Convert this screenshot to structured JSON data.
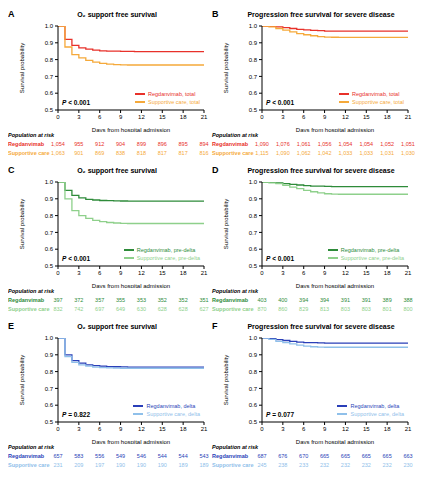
{
  "chart_data": [
    {
      "type": "line",
      "label": "A",
      "title": "O₂ support free survival",
      "x_label": "Days from hospital admission",
      "y_label": "Survival probability",
      "annotation": "P < 0.001",
      "line_style": "step",
      "legend": "lower right",
      "xlim": [
        0,
        21
      ],
      "xticks": [
        0,
        3,
        6,
        9,
        12,
        15,
        18,
        21
      ],
      "ylim": [
        0.5,
        1
      ],
      "yticks": [
        0.5,
        0.6,
        0.7,
        0.8,
        0.9,
        {
          "value": 1,
          "label": "1.0"
        }
      ],
      "x": [
        0,
        1,
        2,
        3,
        4,
        5,
        6,
        7,
        8,
        9,
        10,
        11,
        12,
        13,
        14,
        15,
        16,
        17,
        18,
        19,
        20,
        21
      ],
      "series": [
        {
          "name": "Regdanvimab, total",
          "color": "#e8312a",
          "values": [
            1,
            0.92,
            0.885,
            0.87,
            0.862,
            0.856,
            0.852,
            0.851,
            0.85,
            0.849,
            0.849,
            0.848,
            0.848,
            0.848,
            0.848,
            0.848,
            0.848,
            0.848,
            0.848,
            0.848,
            0.848,
            0.848
          ]
        },
        {
          "name": "Supportive care, total",
          "color": "#f5a93a",
          "values": [
            1,
            0.875,
            0.83,
            0.81,
            0.795,
            0.785,
            0.778,
            0.773,
            0.77,
            0.769,
            0.768,
            0.768,
            0.768,
            0.768,
            0.768,
            0.768,
            0.768,
            0.768,
            0.768,
            0.768,
            0.768,
            0.768
          ]
        }
      ],
      "at_risk": {
        "title": "Population at risk",
        "x": [
          0,
          3,
          6,
          9,
          12,
          15,
          18,
          21
        ],
        "rows": [
          {
            "name": "Regdanvimab",
            "color": "#e8312a",
            "values": [
              1054,
              955,
              912,
              904,
              899,
              896,
              895,
              894
            ]
          },
          {
            "name": "Supportive care",
            "color": "#f5a93a",
            "values": [
              1063,
              901,
              869,
              838,
              818,
              817,
              817,
              816
            ]
          }
        ]
      }
    },
    {
      "type": "line",
      "label": "B",
      "title": "Progression free survival for severe disease",
      "x_label": "Days from hospital admission",
      "y_label": "Survival probability",
      "annotation": "P < 0.001",
      "line_style": "step",
      "legend": "lower right",
      "xlim": [
        0,
        21
      ],
      "xticks": [
        0,
        3,
        6,
        9,
        12,
        15,
        18,
        21
      ],
      "ylim": [
        0.5,
        1
      ],
      "yticks": [
        0.5,
        0.6,
        0.7,
        0.8,
        0.9,
        {
          "value": 1,
          "label": "1.0"
        }
      ],
      "x": [
        0,
        1,
        2,
        3,
        4,
        5,
        6,
        7,
        8,
        9,
        10,
        11,
        12,
        13,
        14,
        15,
        16,
        17,
        18,
        19,
        20,
        21
      ],
      "series": [
        {
          "name": "Regdanvimab, total",
          "color": "#e8312a",
          "values": [
            1,
            0.998,
            0.995,
            0.99,
            0.985,
            0.98,
            0.977,
            0.974,
            0.972,
            0.97,
            0.969,
            0.969,
            0.969,
            0.969,
            0.969,
            0.969,
            0.969,
            0.969,
            0.969,
            0.969,
            0.969,
            0.969
          ]
        },
        {
          "name": "Supportive care, total",
          "color": "#f5a93a",
          "values": [
            1,
            0.995,
            0.985,
            0.975,
            0.965,
            0.955,
            0.948,
            0.942,
            0.937,
            0.934,
            0.933,
            0.932,
            0.932,
            0.932,
            0.932,
            0.932,
            0.932,
            0.932,
            0.932,
            0.932,
            0.932,
            0.932
          ]
        }
      ],
      "at_risk": {
        "title": "Population at risk",
        "x": [
          0,
          3,
          6,
          9,
          12,
          15,
          18,
          21
        ],
        "rows": [
          {
            "name": "Regdanvimab",
            "color": "#e8312a",
            "values": [
              1090,
              1076,
              1061,
              1056,
              1054,
              1054,
              1052,
              1051
            ]
          },
          {
            "name": "Supportive care",
            "color": "#f5a93a",
            "values": [
              1115,
              1090,
              1062,
              1042,
              1033,
              1033,
              1031,
              1030
            ]
          }
        ]
      }
    },
    {
      "type": "line",
      "label": "C",
      "title": "O₂ support free survival",
      "x_label": "Days from hospital admission",
      "y_label": "Survival probability",
      "annotation": "P < 0.001",
      "line_style": "step",
      "legend": "lower right",
      "xlim": [
        0,
        21
      ],
      "xticks": [
        0,
        3,
        6,
        9,
        12,
        15,
        18,
        21
      ],
      "ylim": [
        0.5,
        1
      ],
      "yticks": [
        0.5,
        0.6,
        0.7,
        0.8,
        0.9,
        {
          "value": 1,
          "label": "1.0"
        }
      ],
      "x": [
        0,
        1,
        2,
        3,
        4,
        5,
        6,
        7,
        8,
        9,
        10,
        11,
        12,
        13,
        14,
        15,
        16,
        17,
        18,
        19,
        20,
        21
      ],
      "series": [
        {
          "name": "Regdanvimab, pre-delta",
          "color": "#2e8b3a",
          "values": [
            1,
            0.95,
            0.92,
            0.905,
            0.897,
            0.893,
            0.89,
            0.889,
            0.888,
            0.887,
            0.886,
            0.886,
            0.886,
            0.886,
            0.886,
            0.886,
            0.886,
            0.886,
            0.886,
            0.886,
            0.886,
            0.886
          ]
        },
        {
          "name": "Supportive care, pre-delta",
          "color": "#8ed08b",
          "values": [
            1,
            0.9,
            0.83,
            0.8,
            0.783,
            0.772,
            0.764,
            0.759,
            0.756,
            0.754,
            0.753,
            0.753,
            0.753,
            0.753,
            0.753,
            0.753,
            0.753,
            0.753,
            0.753,
            0.753,
            0.753,
            0.753
          ]
        }
      ],
      "at_risk": {
        "title": "Population at risk",
        "x": [
          0,
          3,
          6,
          9,
          12,
          15,
          18,
          21
        ],
        "rows": [
          {
            "name": "Regdanvimab",
            "color": "#2e8b3a",
            "values": [
              397,
              372,
              357,
              355,
              353,
              352,
              352,
              351
            ]
          },
          {
            "name": "Supportive care",
            "color": "#8ed08b",
            "values": [
              832,
              742,
              697,
              649,
              630,
              628,
              628,
              627
            ]
          }
        ]
      }
    },
    {
      "type": "line",
      "label": "D",
      "title": "Progression free survival for severe disease",
      "x_label": "Days from hospital admission",
      "y_label": "Survival probability",
      "annotation": "P < 0.001",
      "line_style": "step",
      "legend": "lower right",
      "xlim": [
        0,
        21
      ],
      "xticks": [
        0,
        3,
        6,
        9,
        12,
        15,
        18,
        21
      ],
      "ylim": [
        0.5,
        1
      ],
      "yticks": [
        0.5,
        0.6,
        0.7,
        0.8,
        0.9,
        {
          "value": 1,
          "label": "1.0"
        }
      ],
      "x": [
        0,
        1,
        2,
        3,
        4,
        5,
        6,
        7,
        8,
        9,
        10,
        11,
        12,
        13,
        14,
        15,
        16,
        17,
        18,
        19,
        20,
        21
      ],
      "series": [
        {
          "name": "Regdanvimab, pre-delta",
          "color": "#2e8b3a",
          "values": [
            1,
            0.998,
            0.995,
            0.99,
            0.986,
            0.982,
            0.978,
            0.976,
            0.975,
            0.974,
            0.973,
            0.973,
            0.973,
            0.973,
            0.973,
            0.973,
            0.973,
            0.973,
            0.973,
            0.973,
            0.973,
            0.973
          ]
        },
        {
          "name": "Supportive care, pre-delta",
          "color": "#8ed08b",
          "values": [
            1,
            0.995,
            0.99,
            0.98,
            0.97,
            0.96,
            0.95,
            0.942,
            0.935,
            0.93,
            0.928,
            0.927,
            0.927,
            0.927,
            0.927,
            0.927,
            0.927,
            0.927,
            0.927,
            0.927,
            0.927,
            0.927
          ]
        }
      ],
      "at_risk": {
        "title": "Population at risk",
        "x": [
          0,
          3,
          6,
          9,
          12,
          15,
          18,
          21
        ],
        "rows": [
          {
            "name": "Regdanvimab",
            "color": "#2e8b3a",
            "values": [
              403,
              400,
              394,
              394,
              391,
              391,
              389,
              388
            ]
          },
          {
            "name": "Supportive care",
            "color": "#8ed08b",
            "values": [
              870,
              860,
              829,
              813,
              803,
              803,
              801,
              800
            ]
          }
        ]
      }
    },
    {
      "type": "line",
      "label": "E",
      "title": "O₂ support free survival",
      "x_label": "Days from hospital admission",
      "y_label": "Survival probability",
      "annotation": "P = 0.822",
      "line_style": "step",
      "legend": "lower right",
      "xlim": [
        0,
        21
      ],
      "xticks": [
        0,
        3,
        6,
        9,
        12,
        15,
        18,
        21
      ],
      "ylim": [
        0.5,
        1
      ],
      "yticks": [
        0.5,
        0.6,
        0.7,
        0.8,
        0.9,
        {
          "value": 1,
          "label": "1.0"
        }
      ],
      "x": [
        0,
        1,
        2,
        3,
        4,
        5,
        6,
        7,
        8,
        9,
        10,
        11,
        12,
        13,
        14,
        15,
        16,
        17,
        18,
        19,
        20,
        21
      ],
      "series": [
        {
          "name": "Regdanvimab, delta",
          "color": "#2a3fb8",
          "values": [
            1,
            0.9,
            0.865,
            0.85,
            0.84,
            0.835,
            0.832,
            0.83,
            0.829,
            0.828,
            0.827,
            0.827,
            0.827,
            0.827,
            0.827,
            0.827,
            0.827,
            0.827,
            0.827,
            0.827,
            0.827,
            0.827
          ]
        },
        {
          "name": "Supportive care, delta",
          "color": "#8fc0ea",
          "values": [
            1,
            0.89,
            0.855,
            0.84,
            0.832,
            0.827,
            0.824,
            0.822,
            0.821,
            0.82,
            0.82,
            0.82,
            0.82,
            0.82,
            0.82,
            0.82,
            0.82,
            0.82,
            0.82,
            0.82,
            0.82,
            0.82
          ]
        }
      ],
      "at_risk": {
        "title": "Population at risk",
        "x": [
          0,
          3,
          6,
          9,
          12,
          15,
          18,
          21
        ],
        "rows": [
          {
            "name": "Regdanvimab",
            "color": "#2a3fb8",
            "values": [
              657,
              583,
              556,
              549,
              546,
              544,
              544,
              543
            ]
          },
          {
            "name": "Supportive care",
            "color": "#8fc0ea",
            "values": [
              231,
              209,
              197,
              190,
              190,
              190,
              189,
              189
            ]
          }
        ]
      }
    },
    {
      "type": "line",
      "label": "F",
      "title": "Progression free survival for severe disease",
      "x_label": "Days from hospital admission",
      "y_label": "Survival probability",
      "annotation": "P = 0.077",
      "line_style": "step",
      "legend": "lower right",
      "xlim": [
        0,
        21
      ],
      "xticks": [
        0,
        3,
        6,
        9,
        12,
        15,
        18,
        21
      ],
      "ylim": [
        0.5,
        1
      ],
      "yticks": [
        0.5,
        0.6,
        0.7,
        0.8,
        0.9,
        {
          "value": 1,
          "label": "1.0"
        }
      ],
      "x": [
        0,
        1,
        2,
        3,
        4,
        5,
        6,
        7,
        8,
        9,
        10,
        11,
        12,
        13,
        14,
        15,
        16,
        17,
        18,
        19,
        20,
        21
      ],
      "series": [
        {
          "name": "Regdanvimab, delta",
          "color": "#2a3fb8",
          "values": [
            1,
            0.996,
            0.99,
            0.985,
            0.98,
            0.976,
            0.973,
            0.972,
            0.971,
            0.97,
            0.97,
            0.97,
            0.97,
            0.97,
            0.97,
            0.97,
            0.97,
            0.97,
            0.97,
            0.97,
            0.97,
            0.97
          ]
        },
        {
          "name": "Supportive care, delta",
          "color": "#8fc0ea",
          "values": [
            1,
            0.992,
            0.98,
            0.972,
            0.965,
            0.958,
            0.952,
            0.948,
            0.946,
            0.945,
            0.945,
            0.945,
            0.945,
            0.945,
            0.945,
            0.945,
            0.945,
            0.945,
            0.945,
            0.945,
            0.945,
            0.945
          ]
        }
      ],
      "at_risk": {
        "title": "Population at risk",
        "x": [
          0,
          3,
          6,
          9,
          12,
          15,
          18,
          21
        ],
        "rows": [
          {
            "name": "Regdanvimab",
            "color": "#2a3fb8",
            "values": [
              687,
              676,
              670,
              665,
              665,
              665,
              665,
              663
            ]
          },
          {
            "name": "Supportive care",
            "color": "#8fc0ea",
            "values": [
              245,
              238,
              233,
              232,
              232,
              232,
              232,
              230
            ]
          }
        ]
      }
    }
  ]
}
